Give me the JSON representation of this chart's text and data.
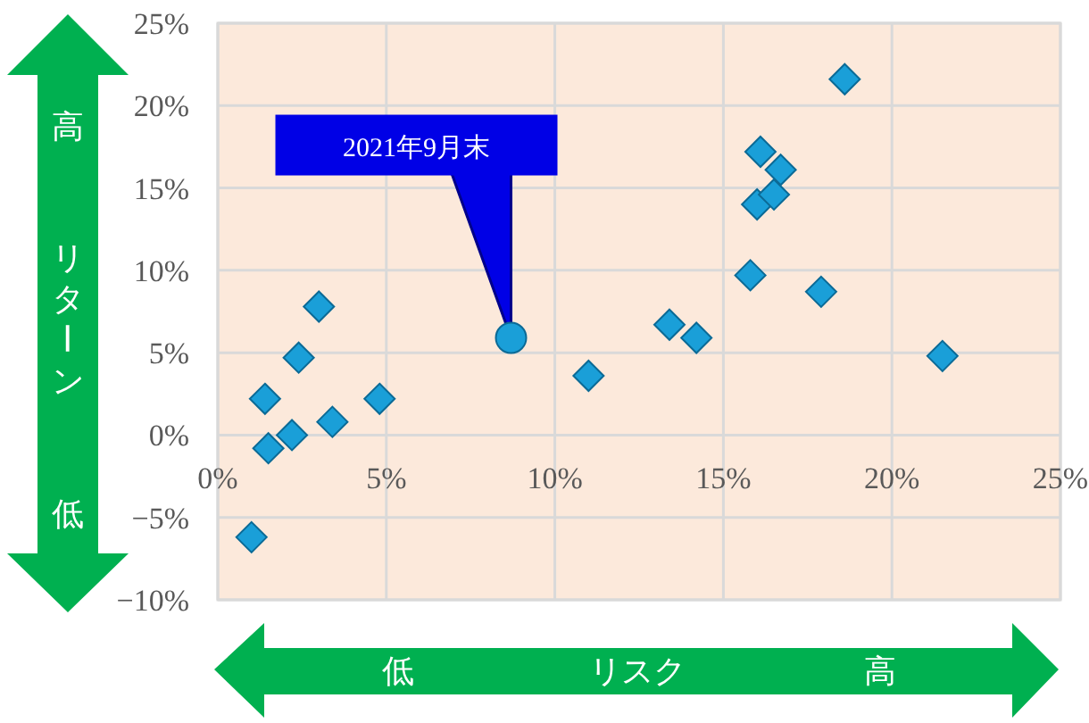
{
  "chart_data": {
    "type": "scatter",
    "xlabel": "リスク",
    "ylabel": "リターン",
    "annotations": [
      {
        "text": "2021年9月末",
        "x": 8.7,
        "y": 5.9
      },
      "高",
      "低",
      "低",
      "高"
    ],
    "xlim": [
      0,
      25
    ],
    "ylim": [
      -10,
      25
    ],
    "xticks": [
      {
        "value": 0,
        "label": "0%"
      },
      {
        "value": 5,
        "label": "5%"
      },
      {
        "value": 10,
        "label": "10%"
      },
      {
        "value": 15,
        "label": "15%"
      },
      {
        "value": 20,
        "label": "20%"
      },
      {
        "value": 25,
        "label": "25%"
      }
    ],
    "yticks": [
      {
        "value": -10,
        "label": "−10%"
      },
      {
        "value": -5,
        "label": "−5%"
      },
      {
        "value": 0,
        "label": "0%"
      },
      {
        "value": 5,
        "label": "5%"
      },
      {
        "value": 10,
        "label": "10%"
      },
      {
        "value": 15,
        "label": "15%"
      },
      {
        "value": 20,
        "label": "20%"
      },
      {
        "value": 25,
        "label": "25%"
      }
    ],
    "grid": true,
    "series": [
      {
        "type": "scatter",
        "marker": "diamond",
        "color": "#1a9fd8",
        "x": [
          1.0,
          1.4,
          1.5,
          2.2,
          2.4,
          3.0,
          3.4,
          4.8,
          11.0,
          13.4,
          14.2,
          15.8,
          16.0,
          16.5,
          16.1,
          16.7,
          17.9,
          18.6,
          21.5
        ],
        "values": [
          -6.2,
          2.2,
          -0.8,
          0.0,
          4.7,
          7.8,
          0.8,
          2.2,
          3.6,
          6.7,
          5.9,
          9.7,
          14.0,
          14.6,
          17.2,
          16.1,
          8.7,
          21.6,
          4.8
        ]
      },
      {
        "type": "scatter",
        "marker": "circle",
        "color": "#1a9fd8",
        "x": [
          8.7
        ],
        "values": [
          5.9
        ]
      }
    ]
  }
}
